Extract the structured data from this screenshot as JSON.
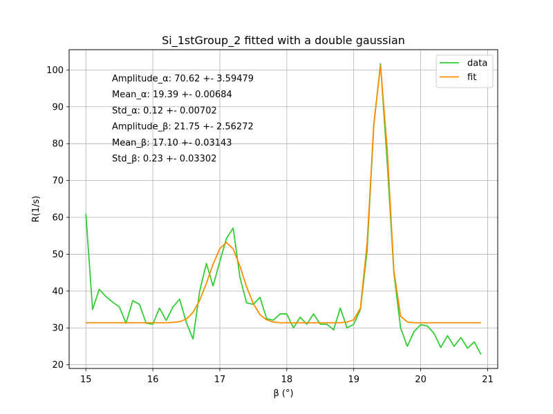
{
  "chart_data": {
    "type": "line",
    "title": "Si_1stGroup_2 fitted with a double gaussian",
    "xlabel": "β (°)",
    "ylabel": "R(1/s)",
    "xlim": [
      14.75,
      21.15
    ],
    "ylim": [
      19.0,
      105.5
    ],
    "xticks": [
      15,
      16,
      17,
      18,
      19,
      20,
      21
    ],
    "yticks": [
      20,
      30,
      40,
      50,
      60,
      70,
      80,
      90,
      100
    ],
    "grid": true,
    "legend_position": "top-right",
    "x": [
      15.0,
      15.1,
      15.2,
      15.3,
      15.4,
      15.5,
      15.6,
      15.7,
      15.8,
      15.9,
      16.0,
      16.1,
      16.2,
      16.3,
      16.4,
      16.5,
      16.6,
      16.7,
      16.8,
      16.9,
      17.0,
      17.1,
      17.2,
      17.3,
      17.4,
      17.5,
      17.6,
      17.7,
      17.8,
      17.9,
      18.0,
      18.1,
      18.2,
      18.3,
      18.4,
      18.5,
      18.6,
      18.7,
      18.8,
      18.9,
      19.0,
      19.1,
      19.2,
      19.3,
      19.4,
      19.5,
      19.6,
      19.7,
      19.8,
      19.9,
      20.0,
      20.1,
      20.2,
      20.3,
      20.4,
      20.5,
      20.6,
      20.7,
      20.8,
      20.9
    ],
    "series": [
      {
        "name": "data",
        "color": "#32cd32",
        "values": [
          61.0,
          35.0,
          40.5,
          38.5,
          37.0,
          35.7,
          31.3,
          37.4,
          36.4,
          31.3,
          31.0,
          35.4,
          32.0,
          35.7,
          37.8,
          31.5,
          27.0,
          40.0,
          47.5,
          41.4,
          48.0,
          54.3,
          57.1,
          43.8,
          36.8,
          36.4,
          38.3,
          32.5,
          32.1,
          33.8,
          33.8,
          30.0,
          32.9,
          31.0,
          33.8,
          31.0,
          31.0,
          29.5,
          35.4,
          30.0,
          31.0,
          35.0,
          51.0,
          85.0,
          101.7,
          75.0,
          45.0,
          30.0,
          25.0,
          29.0,
          30.9,
          30.5,
          28.5,
          24.7,
          27.9,
          25.0,
          27.4,
          24.5,
          26.2,
          22.8
        ]
      },
      {
        "name": "fit",
        "color": "#ff8c00",
        "values": [
          31.4,
          31.4,
          31.4,
          31.4,
          31.4,
          31.4,
          31.4,
          31.4,
          31.4,
          31.4,
          31.4,
          31.4,
          31.4,
          31.5,
          31.7,
          32.4,
          34.2,
          37.5,
          42.1,
          47.3,
          51.5,
          53.2,
          51.4,
          46.8,
          41.2,
          36.6,
          33.6,
          32.2,
          31.6,
          31.4,
          31.4,
          31.4,
          31.4,
          31.4,
          31.4,
          31.4,
          31.4,
          31.4,
          31.4,
          31.6,
          32.2,
          35.4,
          53.0,
          85.3,
          101.2,
          78.6,
          45.5,
          33.2,
          31.6,
          31.4,
          31.4,
          31.4,
          31.4,
          31.4,
          31.4,
          31.4,
          31.4,
          31.4,
          31.4,
          31.4
        ]
      }
    ],
    "annotations": [
      "Amplitude_α: 70.62 +- 3.59479",
      "Mean_α: 19.39 +- 0.00684",
      "Std_α: 0.12 +- 0.00702",
      "Amplitude_β: 21.75 +- 2.56272",
      "Mean_β: 17.10 +- 0.03143",
      "Std_β: 0.23 +- 0.03302"
    ]
  }
}
